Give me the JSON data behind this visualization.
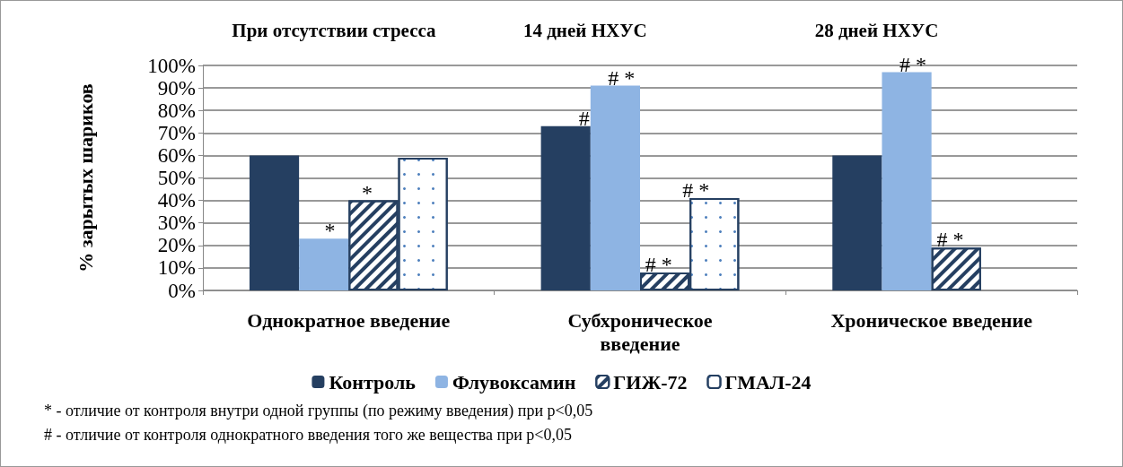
{
  "chart_data": {
    "type": "bar",
    "ylabel": "% зарытых шариков",
    "categories": [
      "Однократное введение",
      "Субхроническое введение",
      "Хроническое введение"
    ],
    "series": [
      {
        "name": "Контроль",
        "color": "#253f61",
        "values": [
          60,
          73,
          60
        ]
      },
      {
        "name": "Флувоксамин",
        "color": "#8eb4e3",
        "values": [
          23,
          91,
          97
        ]
      },
      {
        "name": "ГИЖ-72",
        "color": "#ffffff",
        "values": [
          40,
          8,
          19
        ]
      },
      {
        "name": "ГМАЛ-24",
        "color": "#ffffff",
        "values": [
          59,
          41,
          null
        ]
      }
    ],
    "ylim": [
      0,
      100
    ],
    "yticks": [
      {
        "value": 0,
        "label": "0%"
      },
      {
        "value": 10,
        "label": "10%"
      },
      {
        "value": 20,
        "label": "20%"
      },
      {
        "value": 30,
        "label": "30%"
      },
      {
        "value": 40,
        "label": "40%"
      },
      {
        "value": 50,
        "label": "50%"
      },
      {
        "value": 60,
        "label": "60%"
      },
      {
        "value": 70,
        "label": "70%"
      },
      {
        "value": 80,
        "label": "80%"
      },
      {
        "value": 90,
        "label": "90%"
      },
      {
        "value": 100,
        "label": "100%"
      }
    ],
    "grid": "y",
    "legend": "bottom",
    "annotations": [
      "При отсутствии стресса",
      "14 дней НХУС",
      "28 дней НХУС",
      {
        "text": "*",
        "x": "Однократное введение",
        "y": 23
      },
      {
        "text": "*",
        "x": "Однократное введение",
        "y": 40
      },
      {
        "text": "#",
        "x": "Субхроническое введение",
        "y": 73
      },
      {
        "text": "# *",
        "x": "Субхроническое введение",
        "y": 91
      },
      {
        "text": "# *",
        "x": "Субхроническое введение",
        "y": 8
      },
      {
        "text": "# *",
        "x": "Субхроническое введение",
        "y": 41
      },
      {
        "text": "# *",
        "x": "Хроническое введение",
        "y": 97
      },
      {
        "text": "# *",
        "x": "Хроническое введение",
        "y": 19
      },
      "* - отличие от контроля внутри одной группы (по режиму введения) при p<0,05",
      "# - отличие от контроля однократного введения того же вещества при p<0,05"
    ]
  }
}
